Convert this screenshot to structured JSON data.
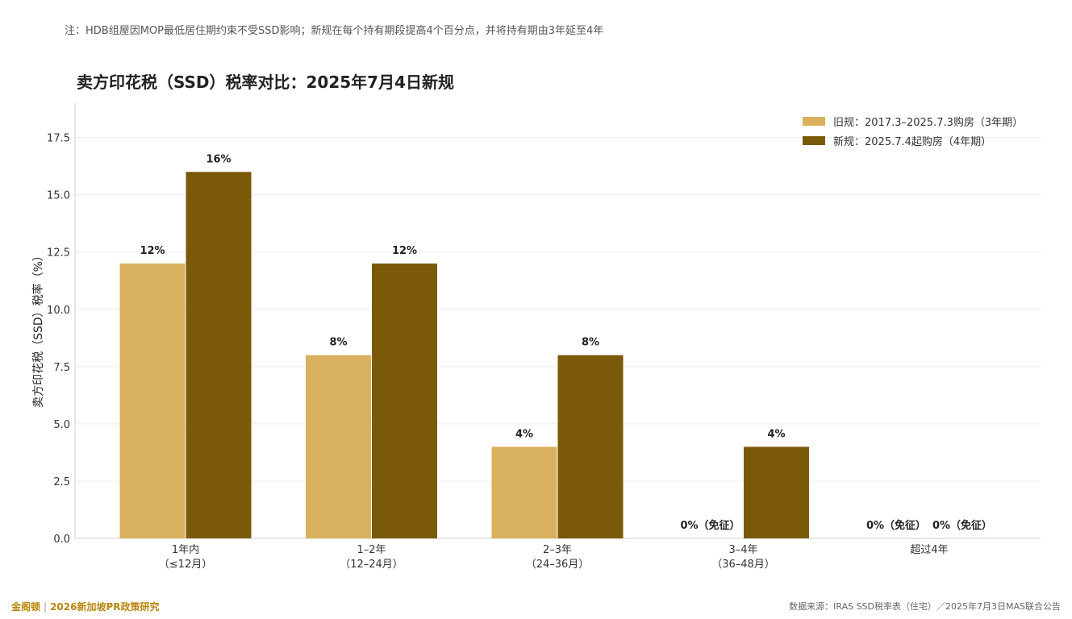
{
  "note": "注：HDB组屋因MOP最低居住期约束不受SSD影响；新规在每个持有期段提高4个百分点，并将持有期由3年延至4年",
  "footer": {
    "brand": "金阁顿",
    "separator": "|",
    "report": "2026新加坡PR政策研究",
    "source": "数据来源：IRAS SSD税率表（住宅）／2025年7月3日MAS联合公告"
  },
  "chart_data": {
    "type": "bar",
    "title": "卖方印花税（SSD）税率对比：2025年7月4日新规",
    "xlabel": "",
    "ylabel": "卖方印花税（SSD）税率（%）",
    "ylim": [
      0,
      19
    ],
    "yticks": [
      "0.0",
      "2.5",
      "5.0",
      "7.5",
      "10.0",
      "12.5",
      "15.0",
      "17.5"
    ],
    "grid": true,
    "legend_position": "top-right",
    "categories": [
      [
        "1年内",
        "（≤12月）"
      ],
      [
        "1–2年",
        "（12–24月）"
      ],
      [
        "2–3年",
        "（24–36月）"
      ],
      [
        "3–4年",
        "（36–48月）"
      ],
      [
        "超过4年"
      ]
    ],
    "series": [
      {
        "name": "旧规：2017.3–2025.7.3购房（3年期）",
        "color": "#d9b05e",
        "values": [
          12,
          8,
          4,
          0,
          0
        ],
        "labels": [
          "12%",
          "8%",
          "4%",
          "0%（免征）",
          "0%（免征）"
        ]
      },
      {
        "name": "新规：2025.7.4起购房（4年期）",
        "color": "#7a5a08",
        "values": [
          16,
          12,
          8,
          4,
          0
        ],
        "labels": [
          "16%",
          "12%",
          "8%",
          "4%",
          "0%（免征）"
        ]
      }
    ]
  }
}
